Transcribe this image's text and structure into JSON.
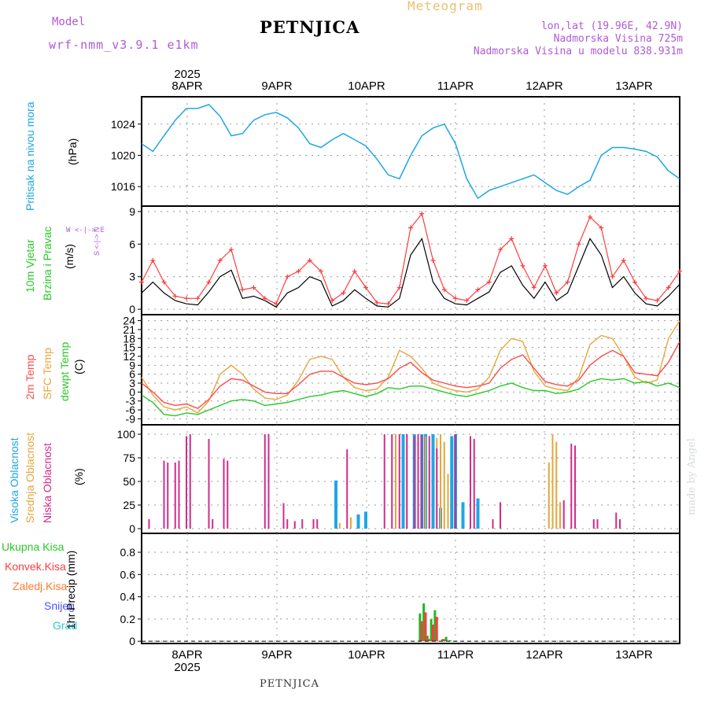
{
  "header": {
    "model_label": "Model",
    "model_name": "wrf-nmm_v3.9.1  e1km",
    "station": "PETNJICA",
    "title": "Meteogram",
    "lonlat": "lon,lat (19.96E, 42.9N)",
    "elevation": "Nadmorska Visina 725m",
    "model_elevation": "Nadmorska Visina u modelu 838.931m"
  },
  "footer": {
    "station": "PETNJICA",
    "credit": "made by Angel"
  },
  "panel_labels": {
    "pressure": [
      "Pritisak na nivou mora"
    ],
    "pressure_unit": "(hPa)",
    "wind": [
      "10m Vjetar",
      "Brzina i Pravac"
    ],
    "wind_unit": "(m/s)",
    "compass": [
      "W <-|-> E",
      "S <-|-> N"
    ],
    "temp": [
      "2m Temp",
      "SFC Temp",
      "dewpt Temp"
    ],
    "temp_unit": "(C)",
    "cloud": [
      "Visoka Oblacnost",
      "Srednja Oblacnost",
      "Niska Oblacnost"
    ],
    "cloud_unit": "(%)",
    "precip": [
      "Ukupna Kisa",
      "Konvek.Kisa",
      "Zaledj.Kisa",
      "Snijeg",
      "Grad"
    ],
    "precip_unit": "1hr Precip (mm)"
  },
  "colors": {
    "pressure": "#1ea6e6",
    "wind_speed": "#000000",
    "wind_gust": "#ff3c3c",
    "t2m": "#ff4a4a",
    "tsfc": "#e6a63c",
    "dewpt": "#28c828",
    "cloud_high": "#1ea6e6",
    "cloud_mid": "#e6a63c",
    "cloud_low": "#d02c8c",
    "rain": "#28b428",
    "conv": "#ff3c3c",
    "frz": "#ff7a30",
    "snow": "#5050ff",
    "hail": "#30c8c8"
  },
  "chart_data": [
    {
      "type": "line",
      "name": "pressure",
      "top_year": "2025",
      "top_days": [
        "8APR",
        "9APR",
        "10APR",
        "11APR",
        "12APR",
        "13APR"
      ],
      "ylim": [
        1013.5,
        1027.5
      ],
      "yticks": [
        "1016",
        "1020",
        "1024"
      ],
      "x_hours": [
        0,
        3,
        6,
        9,
        12,
        15,
        18,
        21,
        24,
        27,
        30,
        33,
        36,
        39,
        42,
        45,
        48,
        51,
        54,
        57,
        60,
        63,
        66,
        69,
        72,
        75,
        78,
        81,
        84,
        87,
        90,
        93,
        96,
        99,
        102,
        105,
        108,
        111,
        114,
        117,
        120,
        123,
        126,
        129,
        132,
        135,
        138,
        141,
        144
      ],
      "series": [
        {
          "values": [
            1021.5,
            1020.5,
            1022.5,
            1024.5,
            1026.0,
            1026.0,
            1026.5,
            1025.0,
            1022.5,
            1022.8,
            1024.5,
            1025.2,
            1025.5,
            1024.8,
            1023.5,
            1021.5,
            1021.0,
            1022.0,
            1022.8,
            1022.0,
            1021.2,
            1019.5,
            1017.5,
            1017.0,
            1020.0,
            1022.5,
            1023.5,
            1024.0,
            1021.5,
            1017.0,
            1014.5,
            1015.5,
            1016.0,
            1016.5,
            1017.0,
            1017.5,
            1016.5,
            1015.5,
            1015.0,
            1016.0,
            1016.8,
            1020.0,
            1021.0,
            1021.0,
            1020.8,
            1020.5,
            1019.8,
            1018.0,
            1017.0
          ]
        }
      ]
    },
    {
      "type": "line",
      "name": "wind",
      "ylim": [
        -0.5,
        9.5
      ],
      "yticks": [
        "0",
        "3",
        "6",
        "9"
      ],
      "x_hours": [
        0,
        3,
        6,
        9,
        12,
        15,
        18,
        21,
        24,
        27,
        30,
        33,
        36,
        39,
        42,
        45,
        48,
        51,
        54,
        57,
        60,
        63,
        66,
        69,
        72,
        75,
        78,
        81,
        84,
        87,
        90,
        93,
        96,
        99,
        102,
        105,
        108,
        111,
        114,
        117,
        120,
        123,
        126,
        129,
        132,
        135,
        138,
        141,
        144
      ],
      "series": [
        {
          "values": [
            1.5,
            2.5,
            1.5,
            0.8,
            0.5,
            0.4,
            1.6,
            3.0,
            3.6,
            1.0,
            1.2,
            0.8,
            0.2,
            1.5,
            2.0,
            3.0,
            2.6,
            0.3,
            0.8,
            1.8,
            1.0,
            0.3,
            0.2,
            1.0,
            5.0,
            6.5,
            2.5,
            1.0,
            0.5,
            0.4,
            1.0,
            1.6,
            3.4,
            4.0,
            2.2,
            1.0,
            2.5,
            0.8,
            1.5,
            4.0,
            6.5,
            5.0,
            2.0,
            3.0,
            1.5,
            0.5,
            0.3,
            1.2,
            2.3
          ]
        },
        {
          "values": [
            2.5,
            4.5,
            2.5,
            1.2,
            1.0,
            1.0,
            2.5,
            4.5,
            5.5,
            1.8,
            2.0,
            1.0,
            0.5,
            3.0,
            3.5,
            4.5,
            3.5,
            0.8,
            1.5,
            3.5,
            2.0,
            0.6,
            0.5,
            2.0,
            7.5,
            8.8,
            4.5,
            1.8,
            1.0,
            0.8,
            1.8,
            2.5,
            5.5,
            6.5,
            4.0,
            2.0,
            4.0,
            1.5,
            2.5,
            6.0,
            8.5,
            7.5,
            3.0,
            4.5,
            2.5,
            1.0,
            0.8,
            2.0,
            3.5
          ]
        }
      ]
    },
    {
      "type": "line",
      "name": "temperature",
      "ylim": [
        -11,
        26
      ],
      "yticks": [
        "-9",
        "-6",
        "-3",
        "0",
        "3",
        "6",
        "9",
        "12",
        "15",
        "18",
        "21",
        "24"
      ],
      "x_hours": [
        0,
        3,
        6,
        9,
        12,
        15,
        18,
        21,
        24,
        27,
        30,
        33,
        36,
        39,
        42,
        45,
        48,
        51,
        54,
        57,
        60,
        63,
        66,
        69,
        72,
        75,
        78,
        81,
        84,
        87,
        90,
        93,
        96,
        99,
        102,
        105,
        108,
        111,
        114,
        117,
        120,
        123,
        126,
        129,
        132,
        135,
        138,
        141,
        144
      ],
      "series": [
        {
          "values": [
            3.0,
            0.0,
            -3.5,
            -4.5,
            -4.0,
            -5.5,
            -2.5,
            2.0,
            4.5,
            4.0,
            2.0,
            0.0,
            -0.5,
            -0.5,
            2.5,
            6.0,
            7.0,
            7.0,
            5.0,
            3.0,
            2.5,
            3.0,
            4.5,
            8.0,
            10.0,
            6.5,
            4.0,
            3.0,
            2.0,
            1.5,
            2.0,
            3.0,
            8.0,
            11.0,
            12.5,
            8.0,
            3.5,
            2.5,
            2.0,
            4.0,
            9.0,
            12.0,
            14.0,
            12.0,
            6.5,
            6.0,
            5.5,
            10.0,
            17.0
          ]
        },
        {
          "values": [
            5.0,
            -1.0,
            -5.0,
            -6.0,
            -5.0,
            -7.0,
            -3.0,
            6.0,
            9.0,
            6.0,
            1.0,
            -2.0,
            -2.5,
            -1.0,
            4.0,
            11.0,
            12.0,
            11.0,
            5.0,
            1.5,
            0.5,
            1.0,
            5.0,
            14.0,
            12.0,
            8.0,
            3.0,
            1.5,
            0.5,
            0.0,
            1.0,
            5.0,
            14.0,
            18.0,
            17.0,
            7.0,
            2.0,
            1.0,
            0.5,
            5.0,
            16.0,
            19.0,
            18.0,
            12.0,
            5.0,
            3.0,
            4.0,
            18.0,
            24.0
          ]
        },
        {
          "values": [
            -1.0,
            -3.5,
            -7.5,
            -8.0,
            -7.0,
            -7.5,
            -6.0,
            -4.5,
            -3.0,
            -2.5,
            -3.0,
            -4.5,
            -4.0,
            -3.5,
            -2.5,
            -1.5,
            -1.0,
            0.0,
            0.5,
            -0.5,
            -1.5,
            -0.5,
            1.5,
            1.0,
            2.0,
            2.0,
            1.0,
            0.0,
            -1.0,
            -1.5,
            -0.5,
            0.5,
            2.0,
            3.0,
            1.5,
            0.5,
            0.5,
            -0.5,
            0.0,
            1.0,
            3.5,
            4.5,
            4.0,
            4.5,
            3.0,
            3.5,
            2.0,
            3.0,
            1.5
          ]
        }
      ]
    },
    {
      "type": "bar",
      "name": "cloud_cover",
      "ylim": [
        -5,
        110
      ],
      "yticks": [
        "0",
        "25",
        "50",
        "75",
        "100"
      ],
      "series": [
        {
          "name": "Visoka Oblacnost",
          "bars": [
            [
              52,
              51
            ],
            [
              58,
              15
            ],
            [
              60,
              18
            ],
            [
              70,
              100
            ],
            [
              73,
              100
            ],
            [
              75,
              100
            ],
            [
              76,
              100
            ],
            [
              78,
              100
            ],
            [
              80,
              22
            ],
            [
              83,
              98
            ],
            [
              84,
              100
            ],
            [
              86,
              28
            ],
            [
              90,
              32
            ]
          ]
        },
        {
          "name": "Srednja Oblacnost",
          "bars": [
            [
              53,
              6
            ],
            [
              56,
              12
            ],
            [
              68,
              100
            ],
            [
              71,
              100
            ],
            [
              74,
              100
            ],
            [
              76,
              98
            ],
            [
              77,
              72
            ],
            [
              79,
              96
            ],
            [
              80,
              100
            ],
            [
              81,
              92
            ],
            [
              82,
              58
            ],
            [
              109,
              70
            ],
            [
              110,
              100
            ],
            [
              111,
              92
            ],
            [
              112,
              28
            ]
          ]
        },
        {
          "name": "Niska Oblacnost",
          "bars": [
            [
              2,
              10
            ],
            [
              6,
              72
            ],
            [
              7,
              70
            ],
            [
              9,
              70
            ],
            [
              10,
              72
            ],
            [
              12,
              98
            ],
            [
              13,
              100
            ],
            [
              18,
              95
            ],
            [
              19,
              10
            ],
            [
              22,
              74
            ],
            [
              23,
              72
            ],
            [
              33,
              100
            ],
            [
              34,
              100
            ],
            [
              38,
              27
            ],
            [
              39,
              10
            ],
            [
              41,
              8
            ],
            [
              43,
              10
            ],
            [
              46,
              10
            ],
            [
              47,
              10
            ],
            [
              55,
              84
            ],
            [
              65,
              100
            ],
            [
              67,
              100
            ],
            [
              69,
              100
            ],
            [
              71,
              100
            ],
            [
              73,
              98
            ],
            [
              74,
              100
            ],
            [
              75,
              99
            ],
            [
              77,
              98
            ],
            [
              79,
              85
            ],
            [
              84,
              100
            ],
            [
              88,
              98
            ],
            [
              89,
              95
            ],
            [
              94,
              10
            ],
            [
              96,
              28
            ],
            [
              113,
              30
            ],
            [
              115,
              90
            ],
            [
              116,
              88
            ],
            [
              121,
              10
            ],
            [
              122,
              10
            ],
            [
              127,
              17
            ],
            [
              128,
              10
            ]
          ]
        }
      ]
    },
    {
      "type": "bar",
      "name": "precipitation",
      "ylim": [
        -0.02,
        0.97
      ],
      "yticks": [
        "0",
        "0.2",
        "0.4",
        "0.6",
        "0.8"
      ],
      "bottom_days": [
        "8APR",
        "9APR",
        "10APR",
        "11APR",
        "12APR",
        "13APR"
      ],
      "bottom_year": "2025",
      "series": [
        {
          "name": "Ukupna Kisa",
          "bars": [
            [
              74.5,
              0.25
            ],
            [
              75.5,
              0.34
            ],
            [
              76.5,
              0.05
            ],
            [
              77.5,
              0.2
            ],
            [
              78.5,
              0.28
            ],
            [
              80.5,
              0.02
            ],
            [
              81.5,
              0.04
            ],
            [
              82.5,
              0.01
            ]
          ]
        },
        {
          "name": "Konvek.Kisa",
          "bars": [
            [
              75,
              0.18
            ],
            [
              76,
              0.26
            ],
            [
              77,
              0.02
            ],
            [
              78,
              0.15
            ],
            [
              79,
              0.22
            ],
            [
              81,
              0.02
            ]
          ]
        }
      ]
    }
  ]
}
